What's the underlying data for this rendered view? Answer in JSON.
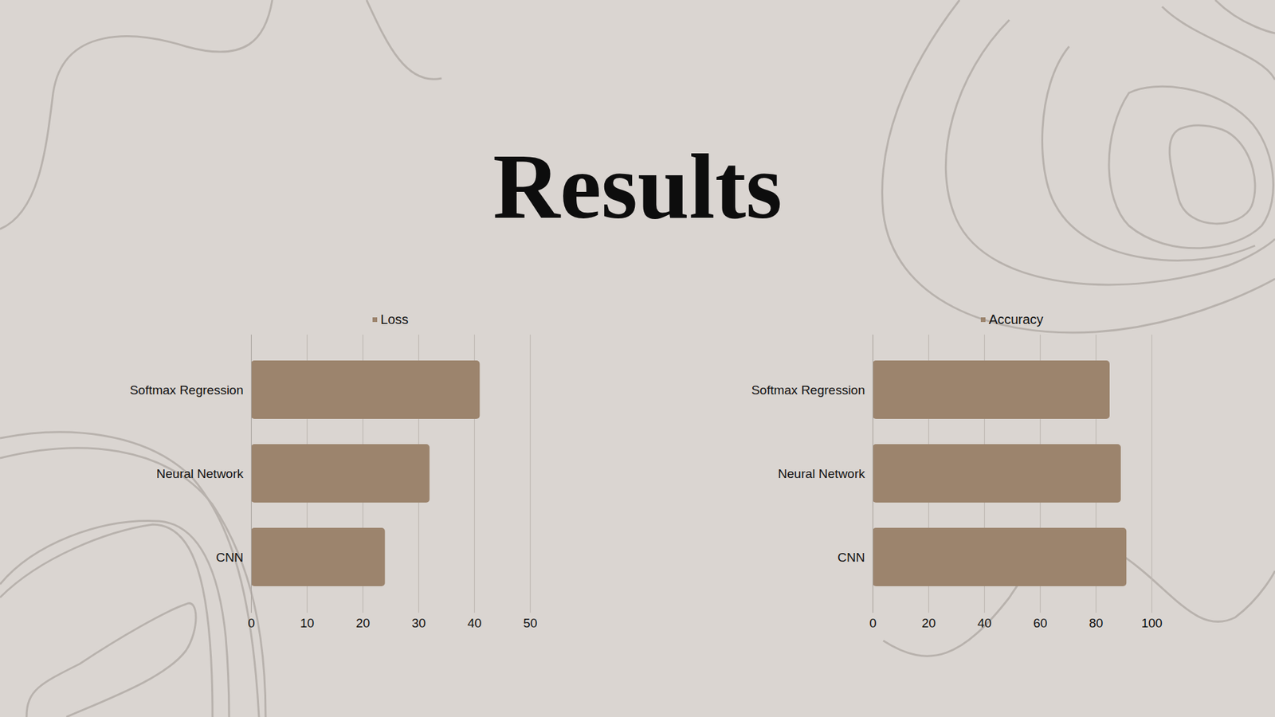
{
  "title": "Results",
  "chart_data": [
    {
      "type": "bar",
      "orientation": "horizontal",
      "categories": [
        "Softmax Regression",
        "Neural Network",
        "CNN"
      ],
      "series": [
        {
          "name": "Loss",
          "color": "#9c846d",
          "values": [
            41,
            32,
            24
          ]
        }
      ],
      "xlim": [
        0,
        50
      ],
      "xticks": [
        0,
        10,
        20,
        30,
        40,
        50
      ],
      "grid": true,
      "legend": "top"
    },
    {
      "type": "bar",
      "orientation": "horizontal",
      "categories": [
        "Softmax Regression",
        "Neural Network",
        "CNN"
      ],
      "series": [
        {
          "name": "Accuracy",
          "color": "#9c846d",
          "values": [
            85,
            89,
            91
          ]
        }
      ],
      "xlim": [
        0,
        100
      ],
      "xticks": [
        0,
        20,
        40,
        60,
        80,
        100
      ],
      "grid": true,
      "legend": "top"
    }
  ]
}
